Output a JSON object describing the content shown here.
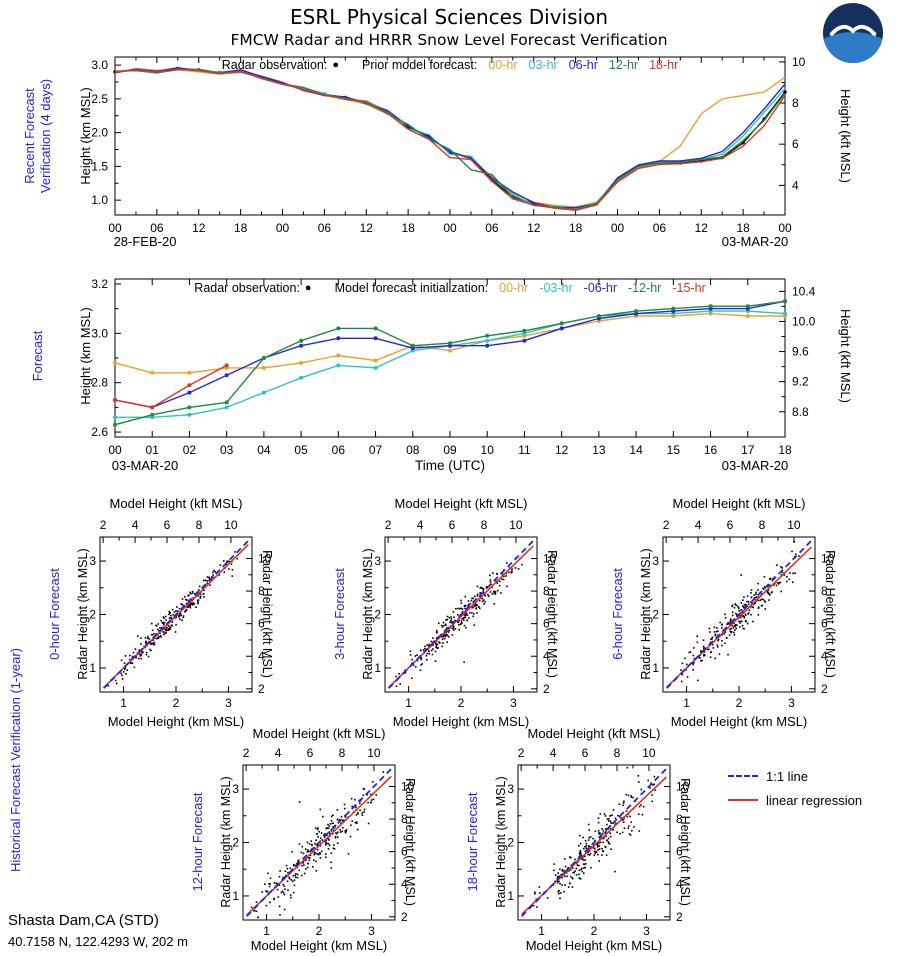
{
  "header": {
    "title": "ESRL Physical Sciences Division",
    "subtitle": "FMCW Radar and HRRR Snow Level Forecast Verification"
  },
  "side_labels": {
    "historical": "Historical Forecast Verification (1-year)",
    "label_color": "#2222e6"
  },
  "footer": {
    "station": "Shasta Dam,CA (STD)",
    "coordinates": "40.7158 N, 122.4293 W, 202 m"
  },
  "scatter_legend": {
    "one_to_one_label": "1:1 line",
    "regression_label": "linear regression",
    "one_to_one_color": "#2222e6",
    "regression_color": "#e23222"
  },
  "chart_data": [
    {
      "id": "recent_forecast_verification",
      "type": "line",
      "side_label": "Recent Forecast\nVerification (4 days)",
      "ylabel_left": "Height (km MSL)",
      "ylabel_right": "Height (kft MSL)",
      "x_start_date": "28-FEB-20",
      "x_end_date": "03-MAR-20",
      "xlim": [
        0,
        96
      ],
      "x_step": 3,
      "x_minor": true,
      "xticks": [
        0,
        6,
        12,
        18,
        24,
        30,
        36,
        42,
        48,
        54,
        60,
        66,
        72,
        78,
        84,
        90,
        96
      ],
      "xtick_labels": [
        "00",
        "06",
        "12",
        "18",
        "00",
        "06",
        "12",
        "18",
        "00",
        "06",
        "12",
        "18",
        "00",
        "06",
        "12",
        "18",
        "00"
      ],
      "ylim": [
        0.78,
        3.12
      ],
      "yticks_left": [
        1.0,
        1.5,
        2.0,
        2.5,
        3.0
      ],
      "yticks_left_labels": [
        "1.0",
        "1.5",
        "2.0",
        "2.5",
        "3.0"
      ],
      "yticks_right_kft": [
        4,
        6,
        8,
        10
      ],
      "yticks_right_labels": [
        "4",
        "6",
        "8",
        "10"
      ],
      "legend": {
        "obs_label": "Radar observation:",
        "obs_marker": "●",
        "group_label": "Prior model forecast:",
        "items": [
          {
            "label": "00-hr",
            "color": "#efa028"
          },
          {
            "label": "03-hr",
            "color": "#2ac4c8"
          },
          {
            "label": "06-hr",
            "color": "#2727d8"
          },
          {
            "label": "12-hr",
            "color": "#1e8b3e"
          },
          {
            "label": "18-hr",
            "color": "#e23222"
          }
        ]
      },
      "series": [
        {
          "name": "radar-observation",
          "color": "#000000",
          "marker": true,
          "marker_r": 1.7,
          "width": 1.3,
          "values": [
            2.9,
            2.93,
            2.9,
            2.95,
            2.93,
            2.89,
            2.91,
            2.82,
            2.73,
            2.65,
            2.57,
            2.52,
            2.45,
            2.3,
            2.08,
            1.95,
            1.7,
            1.63,
            1.3,
            1.05,
            0.95,
            0.9,
            0.87,
            0.95,
            1.3,
            1.5,
            1.55,
            1.55,
            1.58,
            1.63,
            1.85,
            2.2,
            2.6
          ]
        },
        {
          "name": "00-hr",
          "color": "#efa028",
          "values": [
            2.88,
            2.95,
            2.92,
            2.93,
            2.9,
            2.87,
            2.89,
            2.84,
            2.75,
            2.62,
            2.55,
            2.5,
            2.42,
            2.28,
            2.1,
            1.92,
            1.72,
            1.6,
            1.35,
            1.1,
            0.97,
            0.92,
            0.9,
            0.97,
            1.28,
            1.48,
            1.57,
            1.8,
            2.28,
            2.5,
            2.55,
            2.6,
            2.82
          ]
        },
        {
          "name": "03-hr",
          "color": "#2ac4c8",
          "values": [
            2.9,
            2.92,
            2.88,
            2.94,
            2.91,
            2.9,
            2.92,
            2.8,
            2.71,
            2.66,
            2.58,
            2.5,
            2.47,
            2.32,
            2.05,
            1.97,
            1.68,
            1.65,
            1.32,
            1.08,
            0.93,
            0.91,
            0.88,
            0.96,
            1.32,
            1.52,
            1.56,
            1.57,
            1.6,
            1.68,
            1.95,
            2.3,
            2.65
          ]
        },
        {
          "name": "06-hr",
          "color": "#2727d8",
          "values": [
            2.89,
            2.94,
            2.91,
            2.96,
            2.92,
            2.88,
            2.93,
            2.83,
            2.74,
            2.63,
            2.55,
            2.53,
            2.43,
            2.33,
            2.1,
            1.93,
            1.72,
            1.62,
            1.33,
            1.12,
            0.96,
            0.89,
            0.89,
            0.94,
            1.33,
            1.52,
            1.58,
            1.58,
            1.62,
            1.72,
            2.0,
            2.35,
            2.72
          ]
        },
        {
          "name": "12-hr",
          "color": "#1e8b3e",
          "values": [
            2.91,
            2.92,
            2.89,
            2.93,
            2.94,
            2.88,
            2.9,
            2.81,
            2.72,
            2.67,
            2.56,
            2.51,
            2.44,
            2.28,
            2.12,
            1.9,
            1.75,
            1.45,
            1.38,
            1.04,
            0.92,
            0.9,
            0.86,
            0.95,
            1.3,
            1.5,
            1.55,
            1.56,
            1.6,
            1.64,
            1.88,
            2.18,
            2.58
          ]
        },
        {
          "name": "18-hr",
          "color": "#e23222",
          "values": [
            2.9,
            2.93,
            2.9,
            2.94,
            2.92,
            2.87,
            2.91,
            2.8,
            2.72,
            2.64,
            2.56,
            2.49,
            2.46,
            2.29,
            2.05,
            1.9,
            1.63,
            1.6,
            1.28,
            1.02,
            0.93,
            0.88,
            0.85,
            0.93,
            1.27,
            1.47,
            1.53,
            1.54,
            1.57,
            1.62,
            1.8,
            2.1,
            2.55
          ]
        }
      ]
    },
    {
      "id": "forecast",
      "type": "line",
      "side_label": "Forecast",
      "ylabel_left": "Height (km MSL)",
      "ylabel_right": "Height (kft MSL)",
      "xlabel": "Time (UTC)",
      "x_start_date": "03-MAR-20",
      "x_end_date": "03-MAR-20",
      "xlim": [
        0,
        18
      ],
      "x_step": 1,
      "x_minor": false,
      "xticks": [
        0,
        1,
        2,
        3,
        4,
        5,
        6,
        7,
        8,
        9,
        10,
        11,
        12,
        13,
        14,
        15,
        16,
        17,
        18
      ],
      "xtick_labels": [
        "00",
        "01",
        "02",
        "03",
        "04",
        "05",
        "06",
        "07",
        "08",
        "09",
        "10",
        "11",
        "12",
        "13",
        "14",
        "15",
        "16",
        "17",
        "18"
      ],
      "ylim": [
        2.58,
        3.22
      ],
      "yticks_left": [
        2.6,
        2.8,
        3.0,
        3.2
      ],
      "yticks_left_labels": [
        "2.6",
        "2.8",
        "3.0",
        "3.2"
      ],
      "yticks_right_kft": [
        8.8,
        9.2,
        9.6,
        10.0,
        10.4
      ],
      "yticks_right_labels": [
        "8.8",
        "9.2",
        "9.6",
        "10.0",
        "10.4"
      ],
      "legend": {
        "obs_label": "Radar observation:",
        "obs_marker": "●",
        "group_label": "Model forecast initialization:",
        "items": [
          {
            "label": "00-hr",
            "color": "#efa028"
          },
          {
            "label": "-03-hr",
            "color": "#2ac4c8"
          },
          {
            "label": "-06-hr",
            "color": "#2727d8"
          },
          {
            "label": "-12-hr",
            "color": "#1e8b3e"
          },
          {
            "label": "-15-hr",
            "color": "#e23222"
          }
        ]
      },
      "series": [
        {
          "name": "00-hr",
          "color": "#efa028",
          "marker": true,
          "values": [
            2.88,
            2.84,
            2.84,
            2.86,
            2.86,
            2.88,
            2.91,
            2.89,
            2.95,
            2.93,
            2.97,
            2.99,
            3.02,
            3.05,
            3.07,
            3.07,
            3.08,
            3.07,
            3.07
          ]
        },
        {
          "name": "-03-hr",
          "color": "#2ac4c8",
          "marker": true,
          "values": [
            2.66,
            2.66,
            2.67,
            2.7,
            2.76,
            2.82,
            2.87,
            2.86,
            2.93,
            2.95,
            2.97,
            3.0,
            3.04,
            3.07,
            3.08,
            3.08,
            3.09,
            3.09,
            3.08
          ]
        },
        {
          "name": "-06-hr",
          "color": "#2727d8",
          "marker": true,
          "values": [
            2.73,
            2.7,
            2.76,
            2.83,
            2.9,
            2.95,
            2.98,
            2.98,
            2.94,
            2.95,
            2.95,
            2.97,
            3.02,
            3.06,
            3.08,
            3.09,
            3.1,
            3.1,
            3.13
          ]
        },
        {
          "name": "-12-hr",
          "color": "#1e8b3e",
          "marker": true,
          "values": [
            2.63,
            2.67,
            2.7,
            2.72,
            2.9,
            2.97,
            3.02,
            3.02,
            2.95,
            2.96,
            2.99,
            3.01,
            3.04,
            3.07,
            3.09,
            3.1,
            3.11,
            3.11,
            3.13
          ]
        },
        {
          "name": "-15-hr",
          "color": "#e23222",
          "marker": true,
          "x": [
            0,
            1,
            2,
            3
          ],
          "values": [
            2.73,
            2.7,
            2.79,
            2.87
          ]
        }
      ]
    },
    {
      "id": "historical_verification_scatter",
      "type": "scatter",
      "common": {
        "xlabel_top": "Model Height (kft MSL)",
        "xlabel_bottom": "Model Height (km MSL)",
        "ylabel_left": "Radar Height (km MSL)",
        "ylabel_right": "Radar Height (kft MSL)",
        "xlim": [
          0.55,
          3.45
        ],
        "ylim": [
          0.55,
          3.45
        ],
        "xticks": [
          1,
          2,
          3
        ],
        "xtick_labels": [
          "1",
          "2",
          "3"
        ],
        "kft_ticks": [
          2,
          4,
          6,
          8,
          10
        ],
        "kft_tick_labels": [
          "2",
          "4",
          "6",
          "8",
          "10"
        ],
        "point_count": 280,
        "outlier_frac": 0.035,
        "outlier_sd": 0.45,
        "one_to_one_color": "#2222e6",
        "regression_color": "#e23222"
      },
      "panels": [
        {
          "side_label": "0-hour Forecast",
          "seed": 11,
          "noise_sd": 0.1,
          "regression": {
            "slope": 0.97,
            "intercept": 0.03
          }
        },
        {
          "side_label": "3-hour Forecast",
          "seed": 22,
          "noise_sd": 0.13,
          "regression": {
            "slope": 0.96,
            "intercept": 0.04
          }
        },
        {
          "side_label": "6-hour Forecast",
          "seed": 33,
          "noise_sd": 0.15,
          "regression": {
            "slope": 0.95,
            "intercept": 0.05
          }
        },
        {
          "side_label": "12-hour Forecast",
          "seed": 44,
          "noise_sd": 0.17,
          "regression": {
            "slope": 0.94,
            "intercept": 0.06
          }
        },
        {
          "side_label": "18-hour Forecast",
          "seed": 55,
          "noise_sd": 0.19,
          "regression": {
            "slope": 0.93,
            "intercept": 0.08
          }
        }
      ]
    }
  ]
}
